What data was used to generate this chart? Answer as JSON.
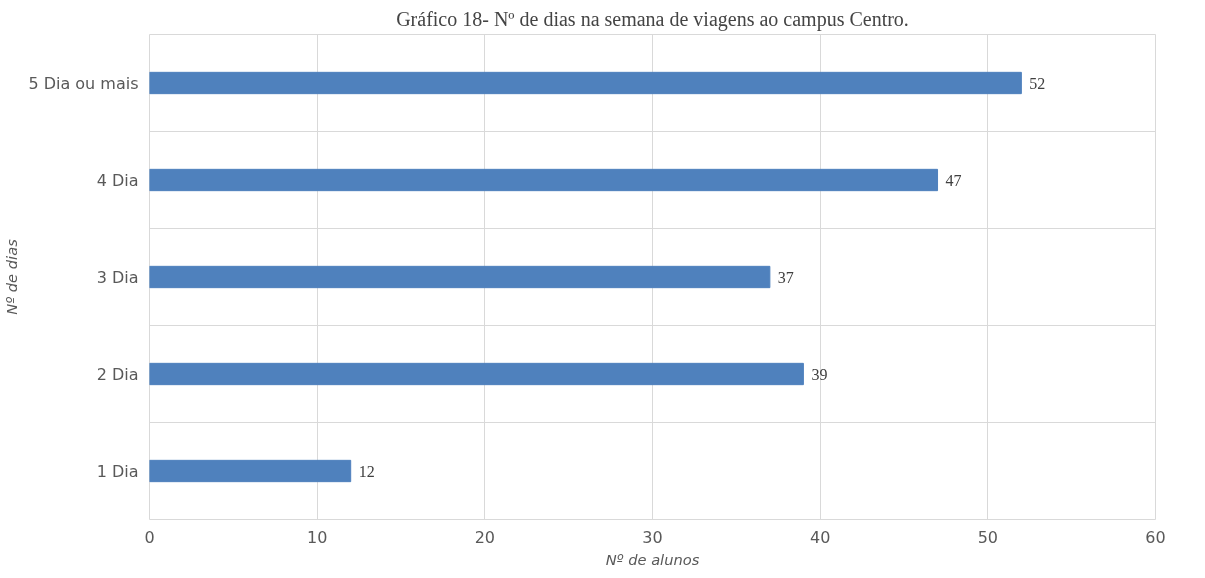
{
  "chart_data": {
    "type": "bar",
    "orientation": "horizontal",
    "title": "Gráfico 18- Nº de dias na semana de viagens ao campus Centro.",
    "xlabel": "Nº de alunos",
    "ylabel": "Nº de dias",
    "categories": [
      "5 Dia ou mais",
      "4 Dia",
      "3 Dia",
      "2 Dia",
      "1 Dia"
    ],
    "values": [
      52,
      47,
      37,
      39,
      12
    ],
    "color": "#4f81bd",
    "xlim": [
      0,
      60
    ],
    "xticks": [
      0,
      10,
      20,
      30,
      40,
      50,
      60
    ],
    "grid": true,
    "data_labels": true
  }
}
